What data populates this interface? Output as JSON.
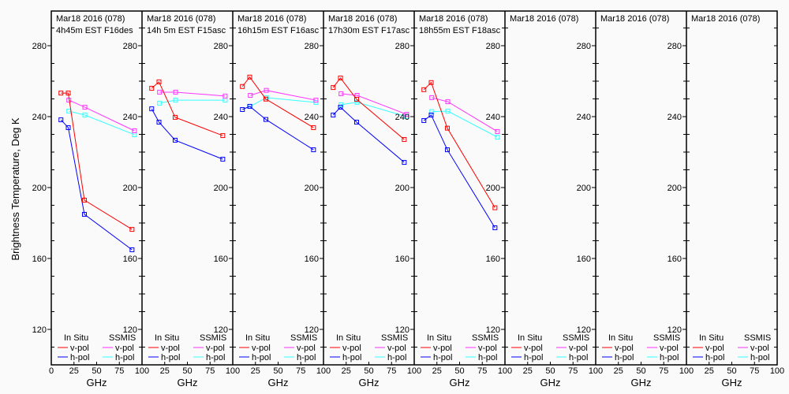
{
  "chart_data": {
    "type": "line",
    "ylabel": "Brightness Temperature, Deg K",
    "xlabel": "GHz",
    "ylim": [
      100,
      300
    ],
    "xlim": [
      0,
      100
    ],
    "yticks": [
      120,
      160,
      200,
      240,
      280
    ],
    "xticks": [
      0,
      25,
      50,
      75,
      100
    ],
    "grid": false,
    "legend": {
      "placement": "bottom",
      "group_insitu": "In Situ",
      "group_ssmis": "SSMIS",
      "vpol": "v-pol",
      "hpol": "h-pol"
    },
    "colors": {
      "insitu_v": "#ff0000",
      "insitu_h": "#0000ff",
      "ssmis_v": "#ff33ff",
      "ssmis_h": "#33ffff"
    },
    "insitu_freqs": [
      10.65,
      18.7,
      36.5,
      89
    ],
    "ssmis_freqs": [
      19.35,
      37,
      91.65
    ],
    "panels": [
      {
        "title1": "Mar18 2016 (078)",
        "title2": "4h45m EST F16des",
        "insitu_v": [
          253.3,
          253.3,
          192.9,
          176.4
        ],
        "insitu_h": [
          238.2,
          233.8,
          184.9,
          164.9
        ],
        "ssmis_v": [
          249.3,
          245.3,
          232.0
        ],
        "ssmis_h": [
          243.1,
          240.9,
          229.8
        ]
      },
      {
        "title1": "Mar18 2016 (078)",
        "title2": "14h 5m EST F15asc",
        "insitu_v": [
          256.0,
          259.6,
          239.6,
          229.3
        ],
        "insitu_h": [
          244.4,
          236.9,
          226.7,
          216.0
        ],
        "ssmis_v": [
          253.8,
          253.8,
          251.6
        ],
        "ssmis_h": [
          247.6,
          249.3,
          249.3
        ]
      },
      {
        "title1": "Mar18 2016 (078)",
        "title2": "16h15m EST F16asc",
        "insitu_v": [
          257.0,
          262.3,
          249.9,
          233.8
        ],
        "insitu_h": [
          244.0,
          245.8,
          238.4,
          221.3
        ],
        "ssmis_v": [
          252.0,
          254.8,
          249.3
        ],
        "ssmis_h": [
          245.8,
          250.7,
          248.0
        ]
      },
      {
        "title1": "Mar18 2016 (078)",
        "title2": "17h30m EST F17asc",
        "insitu_v": [
          256.4,
          261.8,
          249.8,
          227.1
        ],
        "insitu_h": [
          240.9,
          245.3,
          236.9,
          214.2
        ],
        "ssmis_v": [
          252.9,
          252.0,
          241.3
        ],
        "ssmis_h": [
          246.7,
          248.1,
          240.0
        ]
      },
      {
        "title1": "Mar18 2016 (078)",
        "title2": "18h55m EST F18asc",
        "insitu_v": [
          255.2,
          259.2,
          233.5,
          188.6
        ],
        "insitu_h": [
          237.8,
          240.9,
          221.3,
          177.3
        ],
        "ssmis_v": [
          250.7,
          248.4,
          231.6
        ],
        "ssmis_h": [
          242.8,
          243.1,
          228.4
        ]
      },
      {
        "title1": "Mar18 2016 (078)",
        "title2": ""
      },
      {
        "title1": "Mar18 2016 (078)",
        "title2": ""
      },
      {
        "title1": "Mar18 2016 (078)",
        "title2": ""
      }
    ]
  }
}
